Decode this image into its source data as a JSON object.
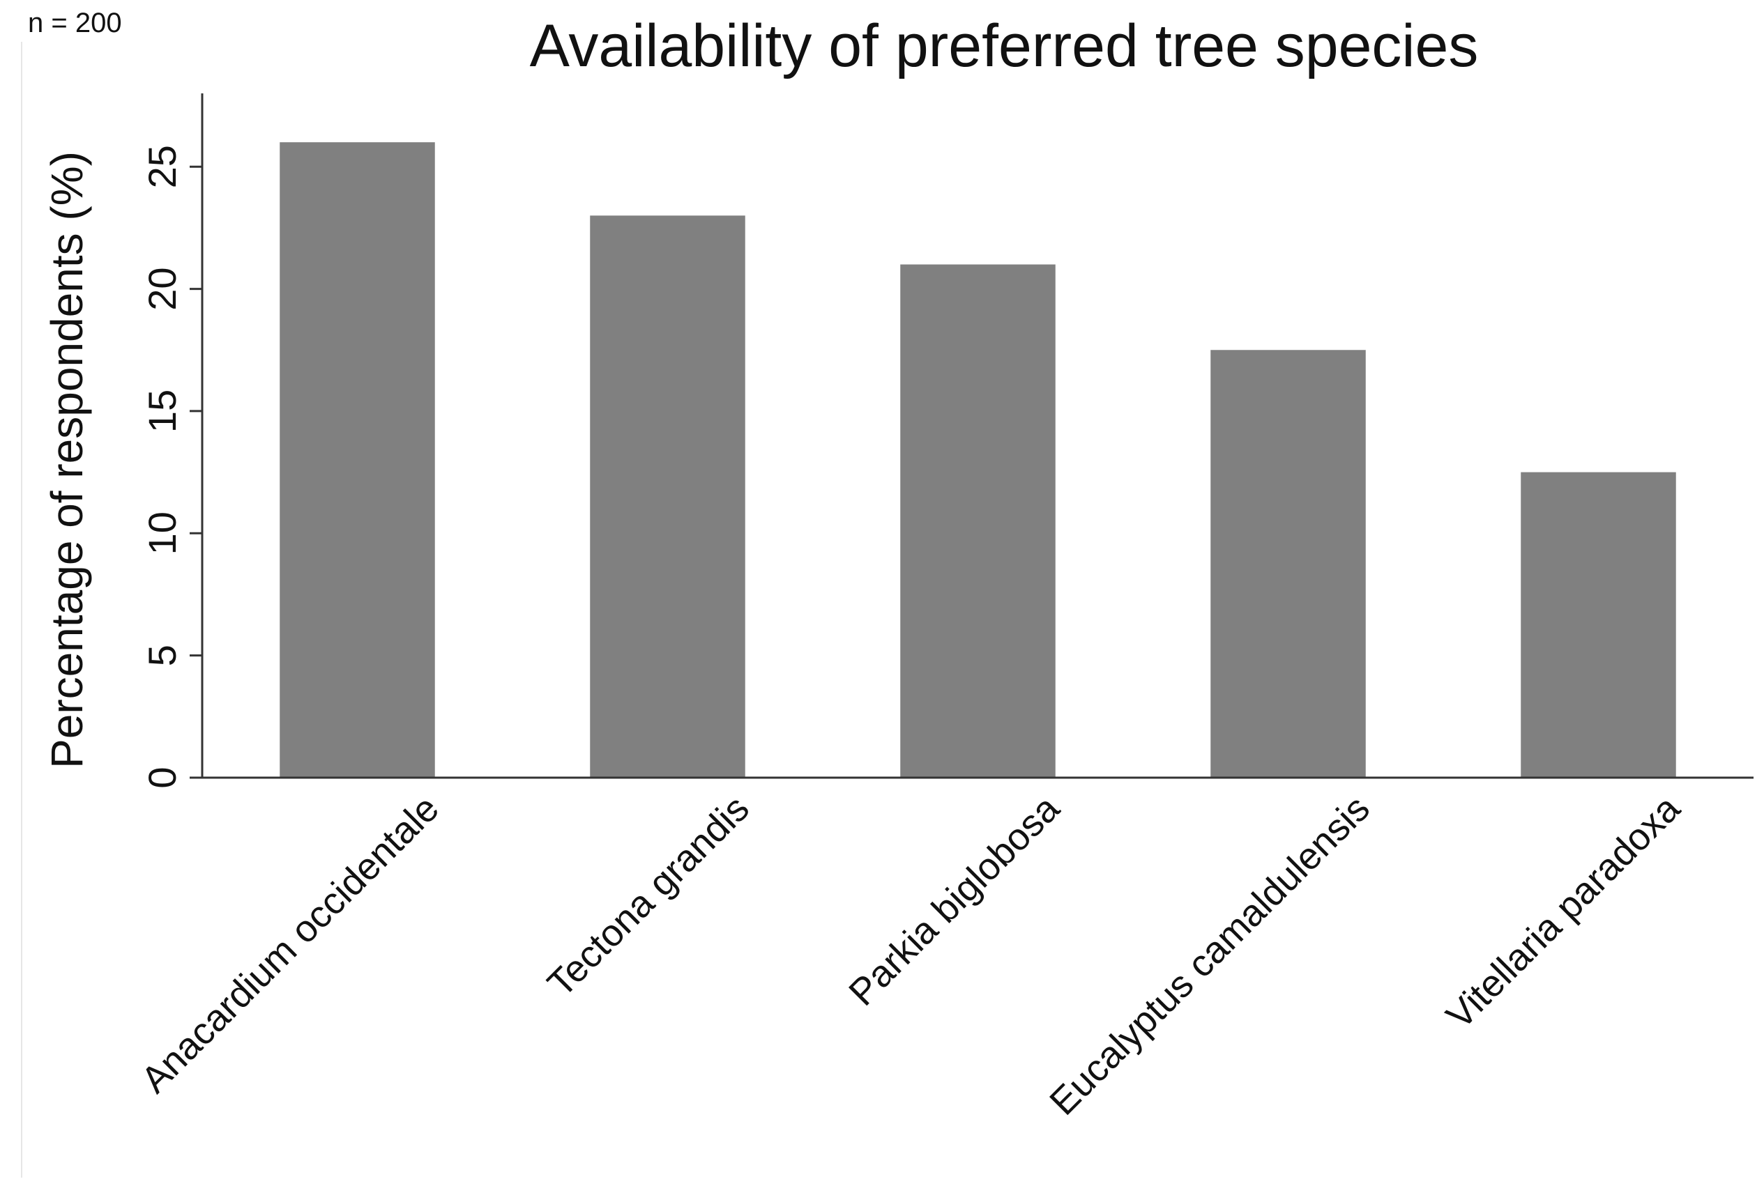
{
  "note": "n = 200",
  "chart_data": {
    "type": "bar",
    "title": "Availability of preferred tree species",
    "xlabel": "",
    "ylabel": "Percentage of respondents (%)",
    "categories": [
      "Anacardium occidentale",
      "Tectona grandis",
      "Parkia biglobosa",
      "Eucalyptus camaldulensis",
      "Vitellaria paradoxa"
    ],
    "values": [
      26,
      23,
      21,
      17.5,
      12.5
    ],
    "ylim": [
      0,
      28
    ],
    "yticks": [
      "0",
      "5",
      "10",
      "15",
      "20",
      "25"
    ],
    "grid": false,
    "bar_color": "#808080",
    "axis_color": "#333333"
  }
}
